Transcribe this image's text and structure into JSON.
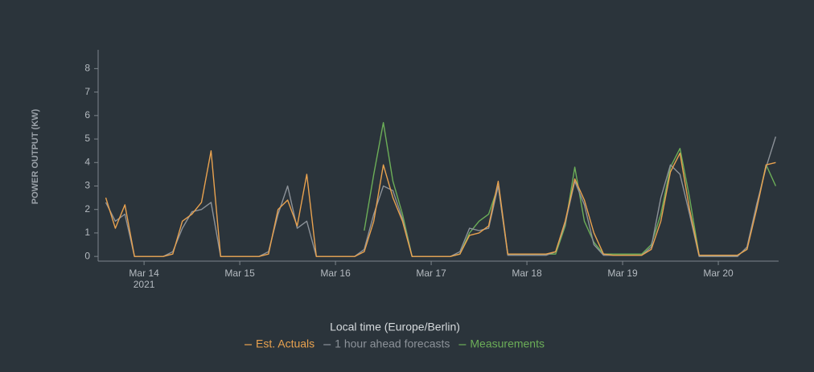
{
  "chart_data": {
    "type": "line",
    "x_label": "Local time (Europe/Berlin)",
    "y_label": "POWER OUTPUT (KW)",
    "x_year_label": "2021",
    "xlim": [
      13.52,
      20.63
    ],
    "xticks": [
      {
        "value": 14,
        "label": "Mar 14"
      },
      {
        "value": 15,
        "label": "Mar 15"
      },
      {
        "value": 16,
        "label": "Mar 16"
      },
      {
        "value": 17,
        "label": "Mar 17"
      },
      {
        "value": 18,
        "label": "Mar 18"
      },
      {
        "value": 19,
        "label": "Mar 19"
      },
      {
        "value": 20,
        "label": "Mar 20"
      }
    ],
    "ylim": [
      -0.2,
      8.8
    ],
    "yticks": [
      0,
      1,
      2,
      3,
      4,
      5,
      6,
      7,
      8
    ],
    "x": [
      13.6,
      13.7,
      13.8,
      13.9,
      14.0,
      14.1,
      14.2,
      14.3,
      14.4,
      14.5,
      14.6,
      14.7,
      14.8,
      14.9,
      15.0,
      15.1,
      15.2,
      15.3,
      15.4,
      15.5,
      15.6,
      15.7,
      15.8,
      15.9,
      16.0,
      16.1,
      16.2,
      16.3,
      16.4,
      16.5,
      16.6,
      16.7,
      16.8,
      16.9,
      17.0,
      17.1,
      17.2,
      17.3,
      17.4,
      17.5,
      17.6,
      17.7,
      17.8,
      17.9,
      18.0,
      18.1,
      18.2,
      18.3,
      18.4,
      18.5,
      18.6,
      18.7,
      18.8,
      18.9,
      19.0,
      19.1,
      19.2,
      19.3,
      19.4,
      19.5,
      19.6,
      19.7,
      19.8,
      19.9,
      20.0,
      20.1,
      20.2,
      20.3,
      20.4,
      20.5,
      20.6
    ],
    "series": [
      {
        "name": "Est. Actuals",
        "color": "#e9a24f",
        "values": [
          2.5,
          1.2,
          2.2,
          0,
          0,
          0,
          0,
          0.1,
          1.5,
          1.8,
          2.3,
          4.5,
          0,
          0,
          0,
          0,
          0,
          0.1,
          2.0,
          2.4,
          1.3,
          3.5,
          0,
          0,
          0,
          0,
          0,
          0.2,
          1.5,
          3.9,
          2.5,
          1.5,
          0,
          0,
          0,
          0,
          0,
          0.1,
          0.9,
          1.0,
          1.3,
          3.2,
          0.1,
          0.1,
          0.1,
          0.1,
          0.1,
          0.2,
          1.5,
          3.3,
          2.4,
          1.0,
          0.1,
          0.05,
          0.05,
          0.05,
          0.05,
          0.3,
          1.5,
          3.6,
          4.4,
          2.0,
          0.05,
          0.05,
          0.05,
          0.05,
          0.05,
          0.3,
          2.0,
          3.9,
          4.0
        ]
      },
      {
        "name": "1 hour ahead forecasts",
        "color": "#8c9299",
        "values": [
          2.3,
          1.5,
          1.8,
          0,
          0,
          0,
          0,
          0.2,
          1.2,
          1.9,
          2.0,
          2.3,
          0,
          0,
          0,
          0,
          0,
          0.2,
          1.8,
          3.0,
          1.2,
          1.5,
          0,
          0,
          0,
          0,
          0,
          0.3,
          1.8,
          3.0,
          2.8,
          1.6,
          0,
          0,
          0,
          0,
          0,
          0.2,
          1.2,
          1.1,
          1.2,
          3.0,
          0.05,
          0.05,
          0.05,
          0.05,
          0.05,
          0.2,
          1.4,
          3.2,
          2.2,
          0.5,
          0.05,
          0.05,
          0.05,
          0.05,
          0.05,
          0.4,
          2.5,
          3.9,
          3.5,
          1.8,
          0,
          0,
          0,
          0,
          0,
          0.4,
          2.2,
          3.8,
          5.1
        ]
      },
      {
        "name": "Measurements",
        "color": "#6cae58",
        "values": [
          null,
          null,
          null,
          null,
          null,
          null,
          null,
          null,
          null,
          null,
          null,
          null,
          null,
          null,
          null,
          null,
          null,
          null,
          null,
          null,
          null,
          null,
          null,
          null,
          null,
          null,
          null,
          1.1,
          3.5,
          5.7,
          3.2,
          1.8,
          0,
          0,
          0,
          0,
          0,
          0.1,
          1.0,
          1.5,
          1.8,
          3.0,
          0.1,
          0.1,
          0.1,
          0.1,
          0.1,
          0.1,
          1.3,
          3.8,
          1.5,
          0.6,
          0.1,
          0.1,
          0.1,
          0.1,
          0.1,
          0.5,
          1.8,
          3.8,
          4.6,
          2.5,
          0.05,
          0.05,
          0.05,
          0.05,
          0.05,
          0.3,
          2.1,
          3.9,
          3.0
        ]
      }
    ]
  }
}
